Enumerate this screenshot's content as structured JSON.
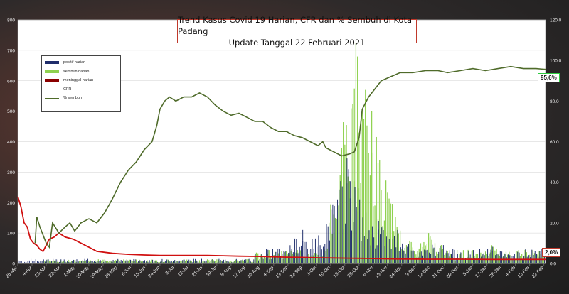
{
  "title": {
    "line1": "Trend Kasus Covid 19 Harian, CFR dan % Sembuh di Kota Padang",
    "line2": "Update Tanggal 22 Februari 2021"
  },
  "legend": [
    {
      "label": "positif harian",
      "color": "#1f2d6b",
      "kind": "bar"
    },
    {
      "label": "sembuh harian",
      "color": "#8fd14f",
      "kind": "bar"
    },
    {
      "label": "meninggal harian",
      "color": "#8b0000",
      "kind": "bar"
    },
    {
      "label": "CFR",
      "color": "#e02020",
      "kind": "line"
    },
    {
      "label": "% sembuh",
      "color": "#4f6b2a",
      "kind": "line"
    }
  ],
  "end_labels": {
    "sembuh": "95,6%",
    "cfr": "2,0%"
  },
  "chart_data": {
    "type": "bar",
    "left_axis": {
      "min": 0,
      "max": 800,
      "ticks": [
        "0",
        "100",
        "200",
        "300",
        "400",
        "500",
        "600",
        "700",
        "800"
      ]
    },
    "right_axis": {
      "min": 0,
      "max": 120,
      "ticks": [
        "0.0",
        "20.0",
        "40.0",
        "60.0",
        "80.0",
        "100.0",
        "120.0"
      ]
    },
    "x_tick_labels": [
      "26-Mar",
      "4-Apr",
      "13-Apr",
      "22-Apr",
      "1-May",
      "10-May",
      "19-May",
      "28-May",
      "6-Jun",
      "15-Jun",
      "24-Jun",
      "3-Jul",
      "12-Jul",
      "21-Jul",
      "30-Jul",
      "8-Aug",
      "17-Aug",
      "26-Aug",
      "4-Sep",
      "13-Sep",
      "22-Sep",
      "1-Oct",
      "10-Oct",
      "19-Oct",
      "28-Oct",
      "6-Nov",
      "15-Nov",
      "24-Nov",
      "3-Dec",
      "12-Dec",
      "21-Dec",
      "30-Dec",
      "8-Jan",
      "17-Jan",
      "26-Jan",
      "4-Feb",
      "13-Feb",
      "22-Feb"
    ],
    "days": 334,
    "positif_peaks": [
      {
        "day": 180,
        "value": 110
      },
      {
        "day": 195,
        "value": 130
      },
      {
        "day": 204,
        "value": 240
      },
      {
        "day": 206,
        "value": 300
      },
      {
        "day": 208,
        "value": 345
      },
      {
        "day": 210,
        "value": 270
      },
      {
        "day": 213,
        "value": 240
      },
      {
        "day": 220,
        "value": 170
      },
      {
        "day": 228,
        "value": 140
      },
      {
        "day": 240,
        "value": 110
      },
      {
        "day": 265,
        "value": 75
      },
      {
        "day": 300,
        "value": 55
      },
      {
        "day": 330,
        "value": 40
      }
    ],
    "sembuh_peaks": [
      {
        "day": 210,
        "value": 200
      },
      {
        "day": 213,
        "value": 270
      },
      {
        "day": 214,
        "value": 735
      },
      {
        "day": 216,
        "value": 430
      },
      {
        "day": 220,
        "value": 570
      },
      {
        "day": 224,
        "value": 500
      },
      {
        "day": 228,
        "value": 330
      },
      {
        "day": 240,
        "value": 120
      },
      {
        "day": 260,
        "value": 100
      },
      {
        "day": 300,
        "value": 60
      },
      {
        "day": 330,
        "value": 40
      }
    ],
    "percent_sembuh": [
      [
        11,
        10.0
      ],
      [
        12,
        23.0
      ],
      [
        14,
        18.0
      ],
      [
        18,
        10.0
      ],
      [
        20,
        8.0
      ],
      [
        22,
        20.0
      ],
      [
        26,
        15.0
      ],
      [
        30,
        18.0
      ],
      [
        33,
        20.0
      ],
      [
        36,
        16.0
      ],
      [
        40,
        20.0
      ],
      [
        45,
        22.0
      ],
      [
        50,
        20.0
      ],
      [
        55,
        25.0
      ],
      [
        60,
        32.0
      ],
      [
        65,
        40.0
      ],
      [
        70,
        46.0
      ],
      [
        75,
        50.0
      ],
      [
        80,
        56.0
      ],
      [
        85,
        60.0
      ],
      [
        88,
        68.0
      ],
      [
        90,
        76.0
      ],
      [
        93,
        80.0
      ],
      [
        96,
        82.0
      ],
      [
        100,
        80.0
      ],
      [
        105,
        82.0
      ],
      [
        110,
        82.0
      ],
      [
        115,
        84.0
      ],
      [
        120,
        82.0
      ],
      [
        125,
        78.0
      ],
      [
        130,
        75.0
      ],
      [
        135,
        73.0
      ],
      [
        140,
        74.0
      ],
      [
        145,
        72.0
      ],
      [
        150,
        70.0
      ],
      [
        155,
        70.0
      ],
      [
        160,
        67.0
      ],
      [
        165,
        65.0
      ],
      [
        170,
        65.0
      ],
      [
        175,
        63.0
      ],
      [
        180,
        62.0
      ],
      [
        185,
        60.0
      ],
      [
        190,
        58.0
      ],
      [
        193,
        60.0
      ],
      [
        195,
        57.0
      ],
      [
        200,
        55.0
      ],
      [
        205,
        53.0
      ],
      [
        210,
        54.0
      ],
      [
        213,
        55.0
      ],
      [
        216,
        62.0
      ],
      [
        218,
        76.0
      ],
      [
        222,
        82.0
      ],
      [
        226,
        86.0
      ],
      [
        230,
        90.0
      ],
      [
        236,
        92.0
      ],
      [
        242,
        94.0
      ],
      [
        250,
        94.0
      ],
      [
        258,
        95.0
      ],
      [
        266,
        95.0
      ],
      [
        272,
        94.0
      ],
      [
        280,
        95.0
      ],
      [
        288,
        96.0
      ],
      [
        296,
        95.0
      ],
      [
        304,
        96.0
      ],
      [
        312,
        97.0
      ],
      [
        320,
        96.0
      ],
      [
        328,
        96.0
      ],
      [
        334,
        95.6
      ]
    ],
    "cfr": [
      [
        0,
        33.0
      ],
      [
        2,
        28.0
      ],
      [
        4,
        20.0
      ],
      [
        6,
        18.0
      ],
      [
        8,
        12.0
      ],
      [
        10,
        10.0
      ],
      [
        12,
        9.0
      ],
      [
        14,
        7.0
      ],
      [
        16,
        6.0
      ],
      [
        18,
        9.0
      ],
      [
        20,
        12.0
      ],
      [
        23,
        13.0
      ],
      [
        26,
        15.0
      ],
      [
        30,
        13.0
      ],
      [
        35,
        12.0
      ],
      [
        40,
        10.0
      ],
      [
        45,
        8.0
      ],
      [
        50,
        6.0
      ],
      [
        60,
        5.0
      ],
      [
        70,
        4.5
      ],
      [
        80,
        4.2
      ],
      [
        90,
        4.0
      ],
      [
        100,
        4.0
      ],
      [
        110,
        4.0
      ],
      [
        120,
        4.0
      ],
      [
        130,
        3.8
      ],
      [
        140,
        3.6
      ],
      [
        150,
        3.5
      ],
      [
        160,
        3.3
      ],
      [
        170,
        3.1
      ],
      [
        180,
        3.0
      ],
      [
        190,
        2.8
      ],
      [
        200,
        2.7
      ],
      [
        210,
        2.6
      ],
      [
        220,
        2.5
      ],
      [
        230,
        2.3
      ],
      [
        240,
        2.2
      ],
      [
        260,
        2.1
      ],
      [
        280,
        2.1
      ],
      [
        300,
        2.0
      ],
      [
        320,
        2.0
      ],
      [
        334,
        2.0
      ]
    ]
  }
}
